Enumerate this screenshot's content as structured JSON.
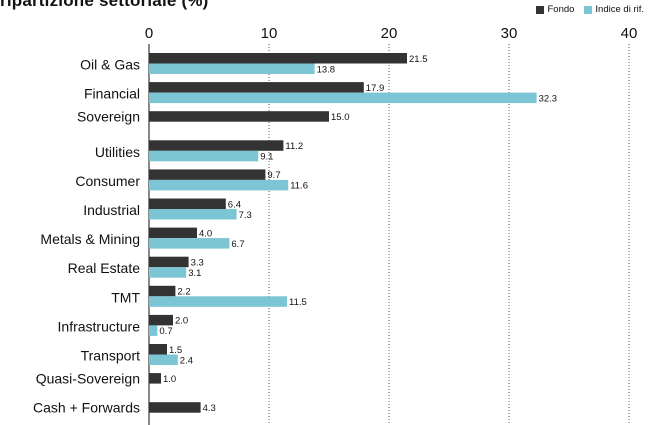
{
  "chart_data": {
    "type": "bar",
    "orientation": "horizontal",
    "title": "ripartizione settoriale (%)",
    "categories": [
      "Oil & Gas",
      "Financial",
      "Sovereign",
      "Utilities",
      "Consumer",
      "Industrial",
      "Metals & Mining",
      "Real Estate",
      "TMT",
      "Infrastructure",
      "Transport",
      "Quasi-Sovereign",
      "Cash + Forwards"
    ],
    "series": [
      {
        "name": "Fondo",
        "color": "#333333",
        "values": [
          21.5,
          17.9,
          15.0,
          11.2,
          9.7,
          6.4,
          4.0,
          3.3,
          2.2,
          2.0,
          1.5,
          1.0,
          4.3
        ],
        "labels": [
          "21.5",
          "17.9",
          "15.0",
          "11.2",
          "9.7",
          "6.4",
          "4.0",
          "3.3",
          "2.2",
          "2.0",
          "1.5",
          "1.0",
          "4.3"
        ]
      },
      {
        "name": "Indice di rif.",
        "color": "#7cc5d4",
        "values": [
          13.8,
          32.3,
          null,
          9.1,
          11.6,
          7.3,
          6.7,
          3.1,
          11.5,
          0.7,
          2.4,
          null,
          null
        ],
        "labels": [
          "13.8",
          "32.3",
          "",
          "9.1",
          "11.6",
          "7.3",
          "6.7",
          "3.1",
          "11.5",
          "0.7",
          "2.4",
          "",
          ""
        ]
      }
    ],
    "xlim": [
      0,
      40
    ],
    "xticks": [
      0,
      10,
      20,
      30,
      40
    ],
    "xtick_labels": [
      "0",
      "10",
      "20",
      "30",
      "40"
    ],
    "grid": "vertical-dotted",
    "legend_position": "top-right"
  }
}
